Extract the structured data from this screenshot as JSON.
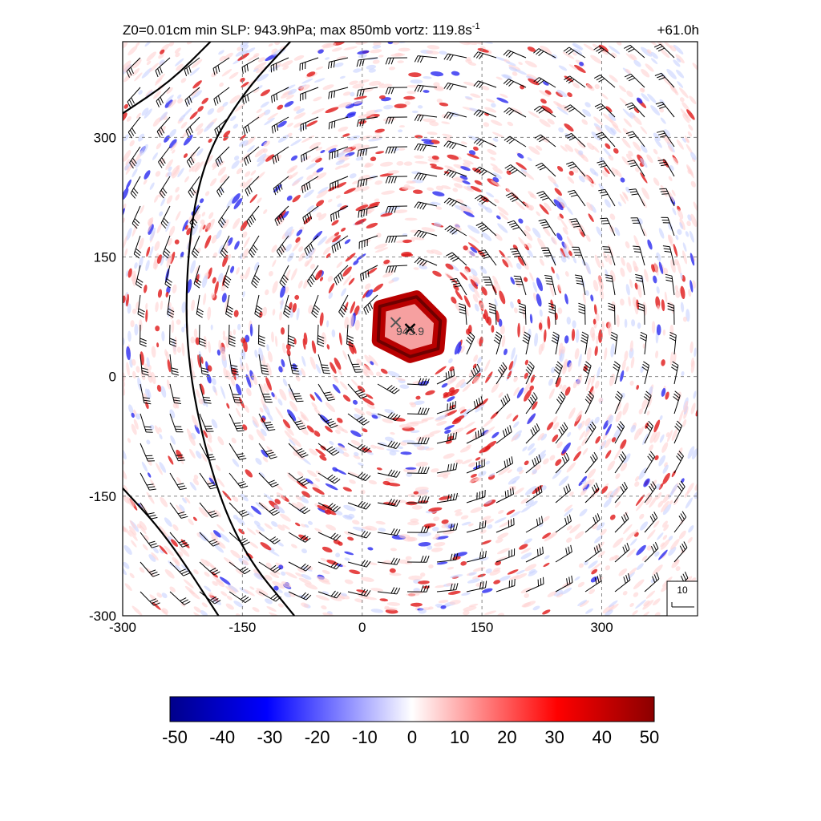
{
  "chart_data": {
    "type": "heatmap",
    "title_left_main": "Z0=0.01cm  min SLP: 943.9hPa; max 850mb vortz: 119.8s",
    "title_left_sup": "-1",
    "title_right": "+61.0h",
    "xlim": [
      -300,
      420
    ],
    "ylim": [
      -300,
      420
    ],
    "xticks": [
      -300,
      -150,
      0,
      150,
      300
    ],
    "yticks": [
      -300,
      -150,
      0,
      150,
      300
    ],
    "grid": true,
    "center_marker": {
      "x": 60,
      "y": 60,
      "label": "943.9"
    },
    "second_marker": {
      "x": 42,
      "y": 68
    },
    "eyewall_polygon": [
      [
        22,
        88
      ],
      [
        68,
        100
      ],
      [
        98,
        70
      ],
      [
        95,
        35
      ],
      [
        60,
        25
      ],
      [
        20,
        45
      ]
    ],
    "pressure_contours": [
      {
        "points": [
          [
            -90,
            420
          ],
          [
            -150,
            355
          ],
          [
            -200,
            270
          ],
          [
            -220,
            150
          ],
          [
            -220,
            20
          ],
          [
            -190,
            -120
          ],
          [
            -150,
            -220
          ],
          [
            -85,
            -300
          ]
        ]
      },
      {
        "points": [
          [
            -190,
            420
          ],
          [
            -240,
            370
          ],
          [
            -300,
            330
          ]
        ]
      },
      {
        "points": [
          [
            -300,
            -140
          ],
          [
            -245,
            -200
          ],
          [
            -180,
            -300
          ]
        ]
      }
    ],
    "colorbar": {
      "min": -50,
      "max": 50,
      "ticks": [
        "-50",
        "-40",
        "-30",
        "-20",
        "-10",
        "0",
        "10",
        "20",
        "30",
        "40",
        "50"
      ],
      "colors": [
        "#00008b",
        "#0000ff",
        "#ffffff",
        "#ff0000",
        "#8b0000"
      ]
    },
    "wind_key_label": "10"
  }
}
